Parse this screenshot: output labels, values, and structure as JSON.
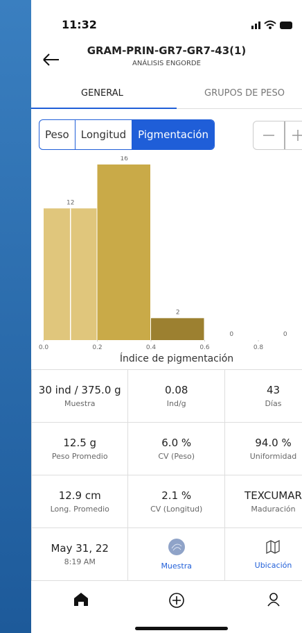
{
  "status_bar": {
    "time": "11:32"
  },
  "header": {
    "title": "GRAM-PRIN-GR7-GR7-43(1)",
    "subtitle": "ANÁLISIS ENGORDE"
  },
  "tabs": [
    "GENERAL",
    "GRUPOS DE PESO"
  ],
  "segments": [
    "Peso",
    "Longitud",
    "Pigmentación"
  ],
  "chart_data": {
    "type": "histogram",
    "x_label": "Índice de pigmentación",
    "bins": [
      0,
      0.2,
      0.4,
      0.6,
      0.8,
      1.0
    ],
    "values": [
      12,
      16,
      2,
      0,
      0
    ],
    "colors": [
      "#e0c67c",
      "#c9aa48",
      "#9c8030",
      "#9c8030",
      "#9c8030"
    ],
    "xlim": [
      0,
      1.0
    ],
    "ylim": [
      0,
      16
    ],
    "xticks": [
      {
        "value": 0,
        "label": "0.0"
      },
      0.2,
      0.4,
      0.6,
      0.8
    ]
  },
  "stats": [
    [
      {
        "value": "30 ind / 375.0 g",
        "label": "Muestra"
      },
      {
        "value": "0.08",
        "label": "Ind/g"
      },
      {
        "value": "43",
        "label": "Días"
      }
    ],
    [
      {
        "value": "12.5 g",
        "label": "Peso Promedio"
      },
      {
        "value": "6.0 %",
        "label": "CV (Peso)"
      },
      {
        "value": "94.0 %",
        "label": "Uniformidad"
      }
    ],
    [
      {
        "value": "12.9 cm",
        "label": "Long. Promedio"
      },
      {
        "value": "2.1 %",
        "label": "CV (Longitud)"
      },
      {
        "value": "TEXCUMAR",
        "label": "Maduración"
      }
    ],
    [
      {
        "value": "May 31, 22",
        "label": "8:19 AM"
      },
      {
        "label": "Muestra"
      },
      {
        "label": "Ubicación"
      }
    ]
  ]
}
